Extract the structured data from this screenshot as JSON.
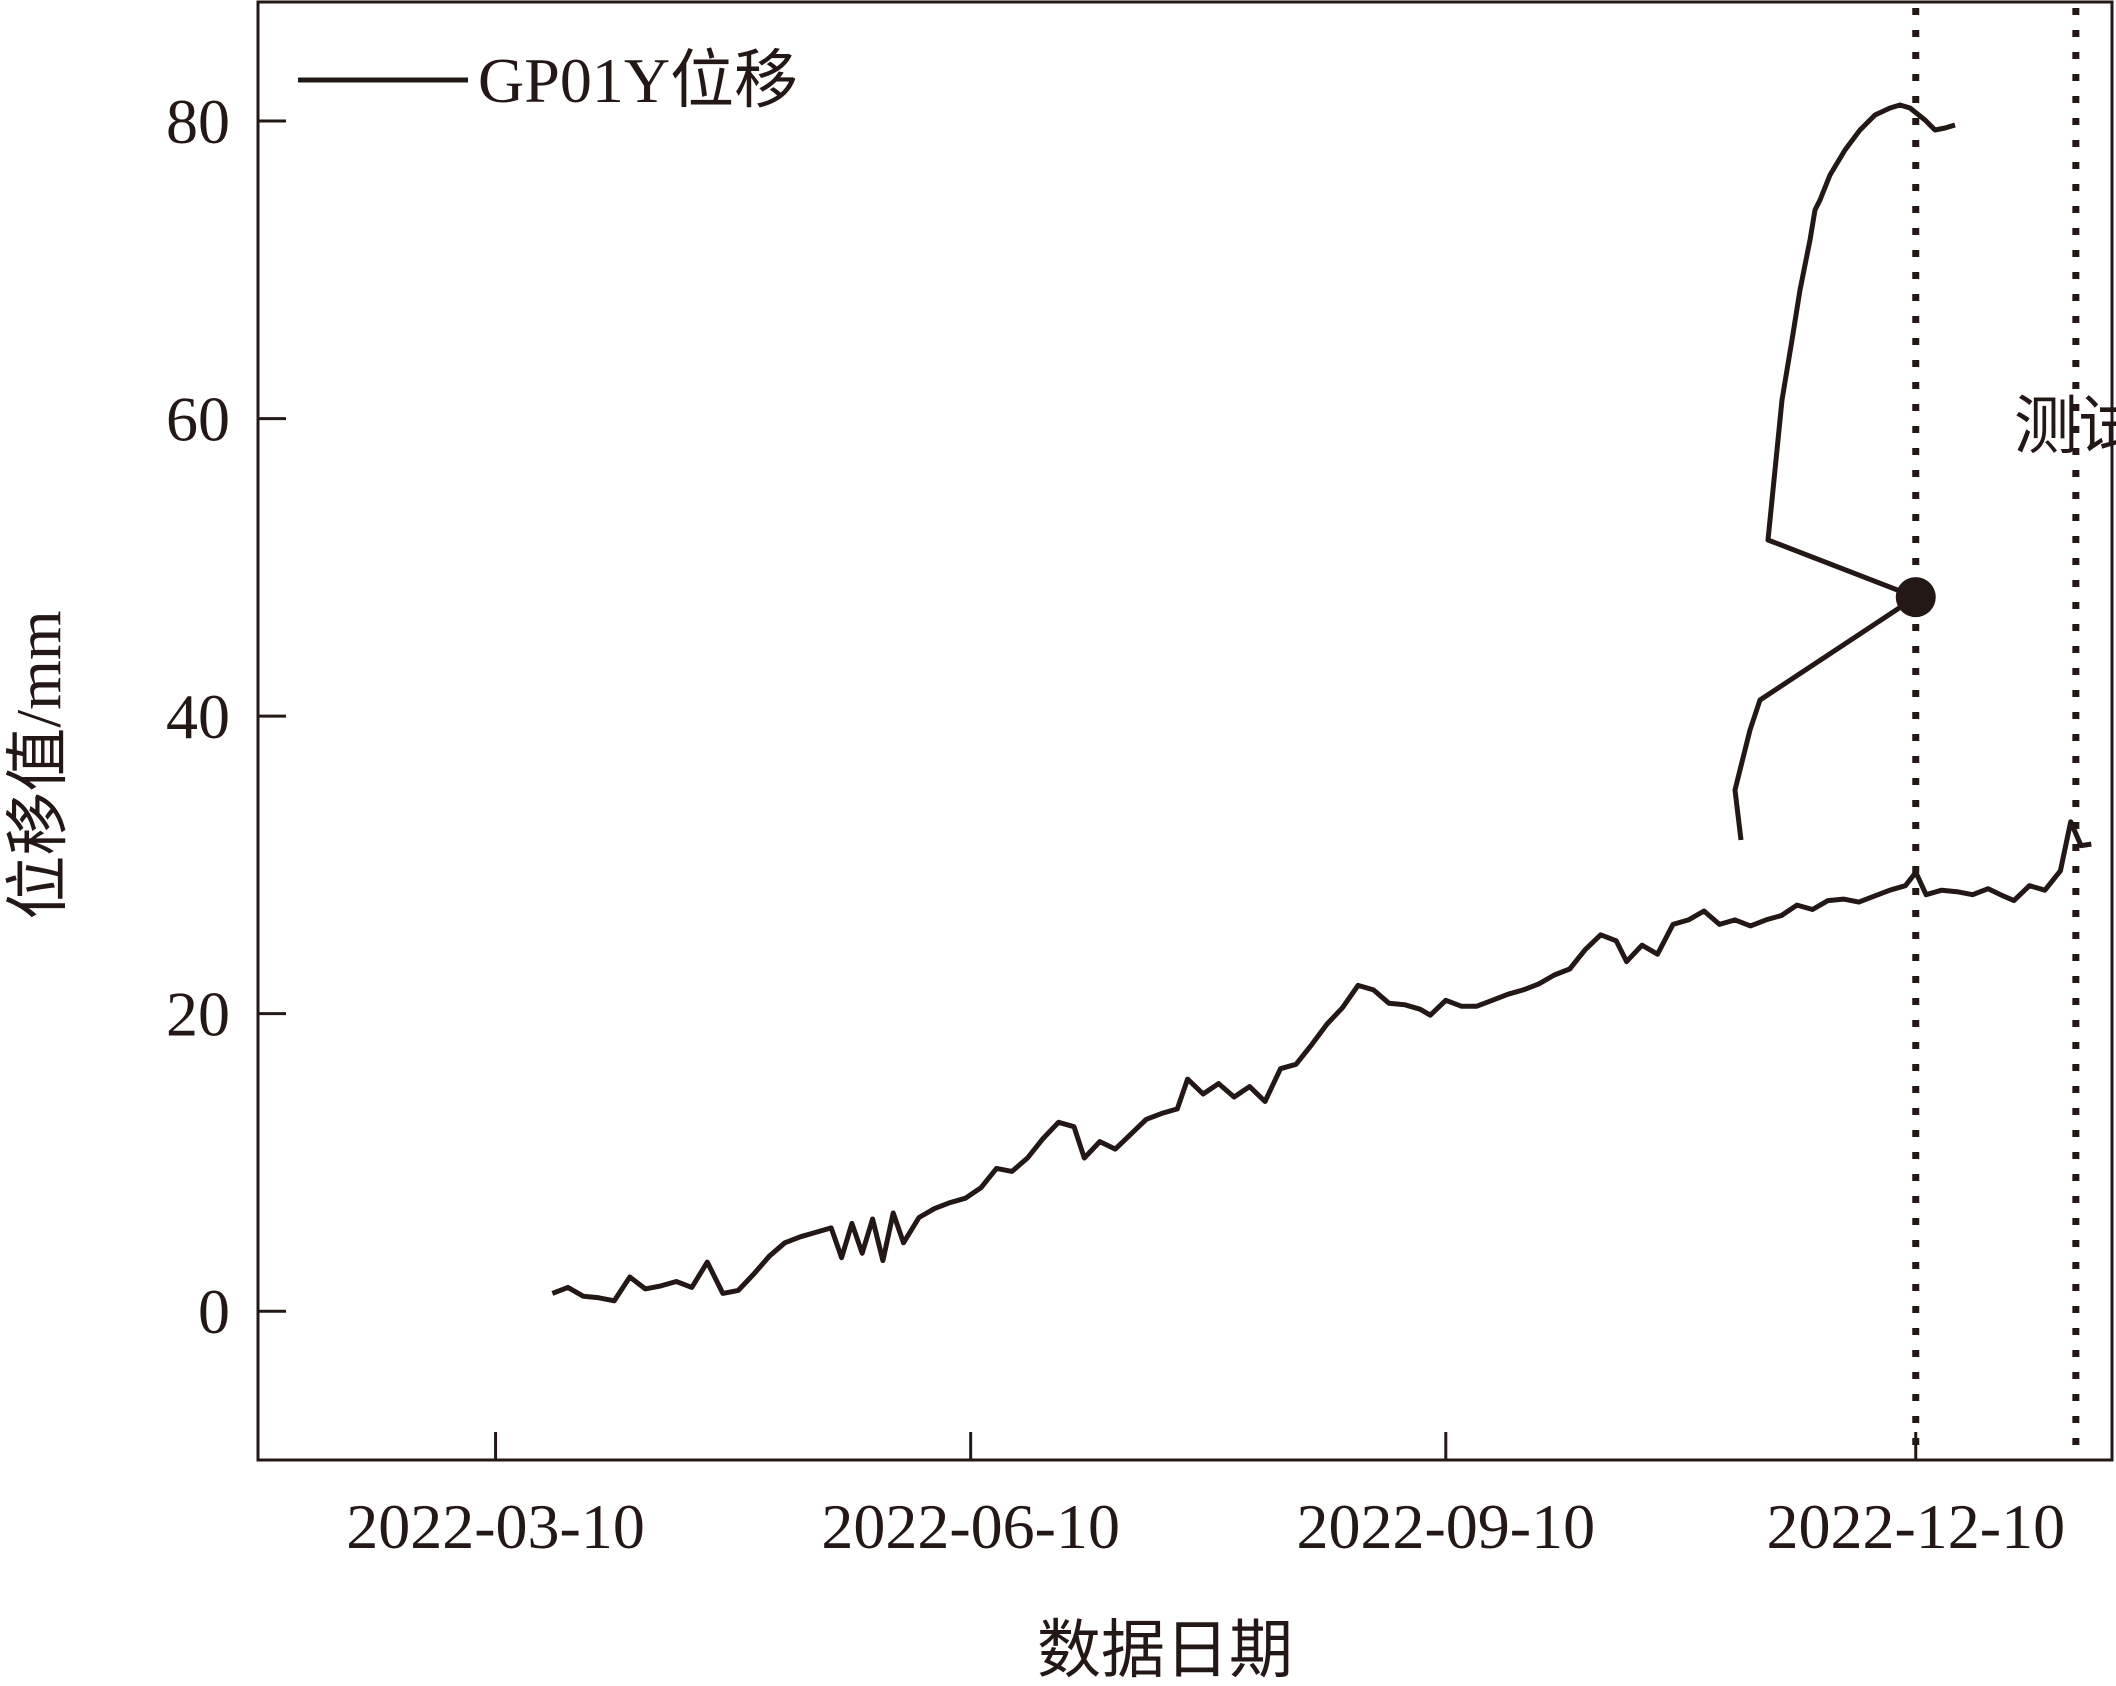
{
  "chart_data": {
    "type": "line",
    "xlabel": "数据日期",
    "ylabel": "位移值/mm",
    "x_axis_type": "date",
    "xlim": [
      "2022-01-23",
      "2023-01-17"
    ],
    "ylim": [
      -10,
      88
    ],
    "x_ticks": [
      "2022-03-10",
      "2022-06-10",
      "2022-09-10",
      "2022-12-10"
    ],
    "y_ticks": [
      0,
      20,
      40,
      60,
      80
    ],
    "grid": false,
    "legend_position": "top-left",
    "series": [
      {
        "name": "GP01Y位移",
        "color": "#231815",
        "points": [
          [
            "2022-03-21",
            1.2
          ],
          [
            "2022-03-24",
            1.6
          ],
          [
            "2022-03-27",
            1.0
          ],
          [
            "2022-03-30",
            0.9
          ],
          [
            "2022-04-02",
            0.7
          ],
          [
            "2022-04-05",
            2.3
          ],
          [
            "2022-04-08",
            1.5
          ],
          [
            "2022-04-11",
            1.7
          ],
          [
            "2022-04-14",
            2.0
          ],
          [
            "2022-04-17",
            1.6
          ],
          [
            "2022-04-20",
            3.3
          ],
          [
            "2022-04-23",
            1.2
          ],
          [
            "2022-04-26",
            1.4
          ],
          [
            "2022-04-29",
            2.5
          ],
          [
            "2022-05-02",
            3.7
          ],
          [
            "2022-05-05",
            4.6
          ],
          [
            "2022-05-08",
            5.0
          ],
          [
            "2022-05-11",
            5.3
          ],
          [
            "2022-05-14",
            5.6
          ],
          [
            "2022-05-16",
            3.6
          ],
          [
            "2022-05-18",
            5.9
          ],
          [
            "2022-05-20",
            3.9
          ],
          [
            "2022-05-22",
            6.2
          ],
          [
            "2022-05-24",
            3.4
          ],
          [
            "2022-05-26",
            6.6
          ],
          [
            "2022-05-28",
            4.6
          ],
          [
            "2022-05-31",
            6.3
          ],
          [
            "2022-06-03",
            6.9
          ],
          [
            "2022-06-06",
            7.3
          ],
          [
            "2022-06-09",
            7.6
          ],
          [
            "2022-06-12",
            8.3
          ],
          [
            "2022-06-15",
            9.6
          ],
          [
            "2022-06-18",
            9.4
          ],
          [
            "2022-06-21",
            10.3
          ],
          [
            "2022-06-24",
            11.6
          ],
          [
            "2022-06-27",
            12.7
          ],
          [
            "2022-06-30",
            12.4
          ],
          [
            "2022-07-02",
            10.3
          ],
          [
            "2022-07-05",
            11.4
          ],
          [
            "2022-07-08",
            10.9
          ],
          [
            "2022-07-11",
            11.9
          ],
          [
            "2022-07-14",
            12.9
          ],
          [
            "2022-07-17",
            13.3
          ],
          [
            "2022-07-20",
            13.6
          ],
          [
            "2022-07-22",
            15.6
          ],
          [
            "2022-07-25",
            14.6
          ],
          [
            "2022-07-28",
            15.3
          ],
          [
            "2022-07-31",
            14.4
          ],
          [
            "2022-08-03",
            15.1
          ],
          [
            "2022-08-06",
            14.1
          ],
          [
            "2022-08-09",
            16.3
          ],
          [
            "2022-08-12",
            16.6
          ],
          [
            "2022-08-15",
            17.9
          ],
          [
            "2022-08-18",
            19.3
          ],
          [
            "2022-08-21",
            20.4
          ],
          [
            "2022-08-24",
            21.9
          ],
          [
            "2022-08-27",
            21.6
          ],
          [
            "2022-08-30",
            20.7
          ],
          [
            "2022-09-02",
            20.6
          ],
          [
            "2022-09-05",
            20.3
          ],
          [
            "2022-09-07",
            19.9
          ],
          [
            "2022-09-10",
            20.9
          ],
          [
            "2022-09-13",
            20.5
          ],
          [
            "2022-09-16",
            20.5
          ],
          [
            "2022-09-19",
            20.9
          ],
          [
            "2022-09-22",
            21.3
          ],
          [
            "2022-09-25",
            21.6
          ],
          [
            "2022-09-28",
            22.0
          ],
          [
            "2022-10-01",
            22.6
          ],
          [
            "2022-10-04",
            23.0
          ],
          [
            "2022-10-07",
            24.3
          ],
          [
            "2022-10-10",
            25.3
          ],
          [
            "2022-10-13",
            24.9
          ],
          [
            "2022-10-15",
            23.5
          ],
          [
            "2022-10-18",
            24.6
          ],
          [
            "2022-10-21",
            24.0
          ],
          [
            "2022-10-24",
            26.0
          ],
          [
            "2022-10-27",
            26.3
          ],
          [
            "2022-10-30",
            26.9
          ],
          [
            "2022-11-02",
            26.0
          ],
          [
            "2022-11-05",
            26.3
          ],
          [
            "2022-11-08",
            25.9
          ],
          [
            "2022-11-11",
            26.3
          ],
          [
            "2022-11-14",
            26.6
          ],
          [
            "2022-11-17",
            27.3
          ],
          [
            "2022-11-20",
            27.0
          ],
          [
            "2022-11-23",
            27.6
          ],
          [
            "2022-11-26",
            27.7
          ],
          [
            "2022-11-29",
            27.5
          ],
          [
            "2022-12-02",
            27.9
          ],
          [
            "2022-12-05",
            28.3
          ],
          [
            "2022-12-08",
            28.6
          ],
          [
            "2022-12-10",
            29.5
          ],
          [
            "2022-12-12",
            28.0
          ],
          [
            "2022-12-15",
            28.3
          ],
          [
            "2022-12-18",
            28.2
          ],
          [
            "2022-12-21",
            28.0
          ],
          [
            "2022-12-24",
            28.4
          ],
          [
            "2022-12-27",
            27.9
          ],
          [
            "2022-12-29",
            27.6
          ],
          [
            "2023-01-01",
            28.6
          ],
          [
            "2023-01-04",
            28.3
          ],
          [
            "2023-01-07",
            29.6
          ],
          [
            "2023-01-09",
            32.9
          ],
          [
            "2023-01-11",
            31.3
          ],
          [
            "2023-01-13",
            31.4
          ]
        ]
      }
    ],
    "vertical_markers": [
      {
        "x": "2022-12-10",
        "style": "dotted"
      },
      {
        "x": "2023-01-10",
        "style": "dotted"
      }
    ],
    "highlight_point": {
      "x": "2022-12-10",
      "y": 48
    },
    "annotations": [
      {
        "text": "测试集",
        "x": "2022-12-29",
        "y": 59.5
      }
    ]
  }
}
